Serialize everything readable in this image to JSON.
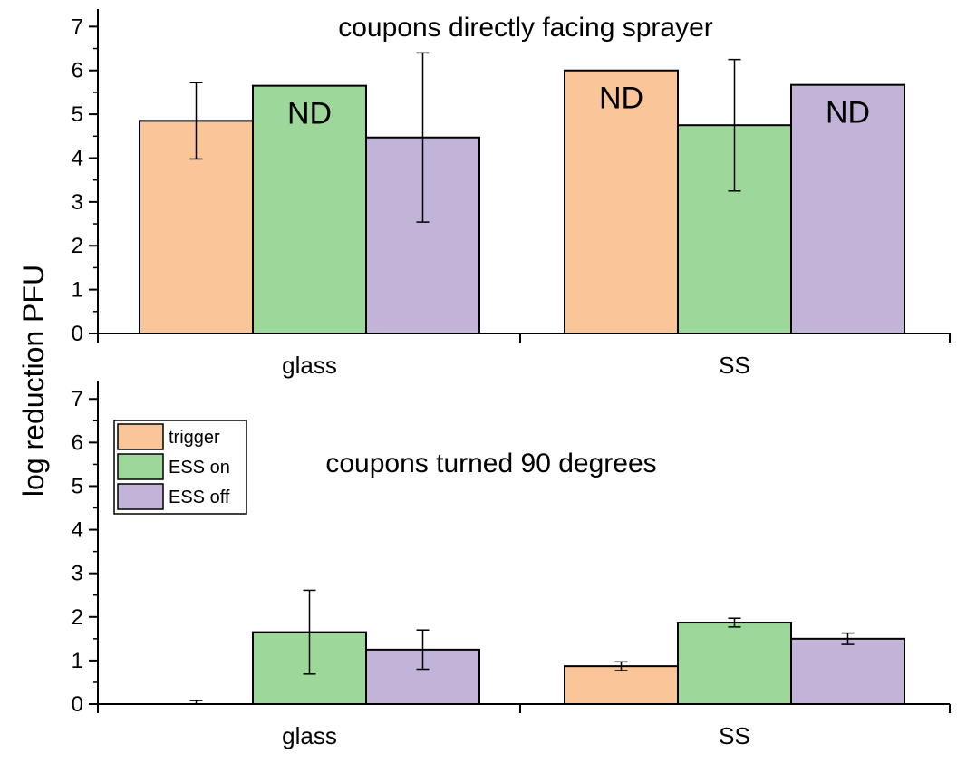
{
  "chart_data": {
    "type": "bar",
    "ylabel": "log reduction PFU",
    "colors": {
      "trigger": "#fac598",
      "ESS on": "#9dd89a",
      "ESS off": "#c2b3d9"
    },
    "legend": {
      "placement": "inside upper-left of bottom panel",
      "entries": [
        "trigger",
        "ESS on",
        "ESS off"
      ]
    },
    "panels": [
      {
        "title": "coupons directly facing sprayer",
        "categories": [
          "glass",
          "SS"
        ],
        "ylim": [
          0,
          7.4
        ],
        "yticks": [
          "0",
          "1",
          "2",
          "3",
          "4",
          "5",
          "6",
          "7"
        ],
        "series": [
          {
            "name": "trigger",
            "values": [
              4.85,
              6.0
            ],
            "errors": [
              0.87,
              null
            ],
            "annotations": [
              "",
              "ND"
            ]
          },
          {
            "name": "ESS on",
            "values": [
              5.65,
              4.75
            ],
            "errors": [
              null,
              1.5
            ],
            "annotations": [
              "ND",
              ""
            ]
          },
          {
            "name": "ESS off",
            "values": [
              4.47,
              5.67
            ],
            "errors": [
              1.93,
              null
            ],
            "annotations": [
              "",
              "ND"
            ]
          }
        ]
      },
      {
        "title": "coupons turned 90 degrees",
        "categories": [
          "glass",
          "SS"
        ],
        "ylim": [
          0,
          7.4
        ],
        "yticks": [
          "0",
          "1",
          "2",
          "3",
          "4",
          "5",
          "6",
          "7"
        ],
        "series": [
          {
            "name": "trigger",
            "values": [
              0.0,
              0.87
            ],
            "errors": [
              0.08,
              0.1
            ],
            "annotations": [
              "",
              ""
            ]
          },
          {
            "name": "ESS on",
            "values": [
              1.65,
              1.87
            ],
            "errors": [
              0.96,
              0.1
            ],
            "annotations": [
              "",
              ""
            ]
          },
          {
            "name": "ESS off",
            "values": [
              1.25,
              1.5
            ],
            "errors": [
              0.45,
              0.13
            ],
            "annotations": [
              "",
              ""
            ]
          }
        ]
      }
    ]
  }
}
